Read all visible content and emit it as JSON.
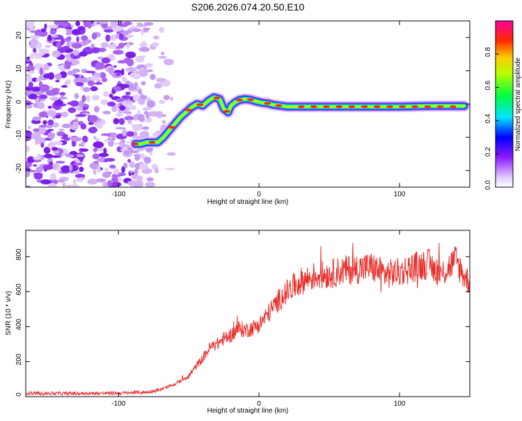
{
  "title": "S206.2026.074.20.50.E10",
  "chart_data": [
    {
      "type": "heatmap",
      "name": "spectrogram",
      "xlabel": "Height of straight line (km)",
      "ylabel": "Frequency (Hz)",
      "xlim": [
        -166,
        150
      ],
      "ylim": [
        -25,
        25
      ],
      "xticks": [
        -100,
        0,
        100
      ],
      "yticks": [
        -20,
        -10,
        0,
        10,
        20
      ],
      "colorbar": {
        "label": "Normalized spectral amplitude",
        "range": [
          0,
          1
        ],
        "ticks": [
          0.0,
          0.2,
          0.4,
          0.6,
          0.8
        ]
      },
      "ridge": {
        "x": [
          -88,
          -84,
          -80,
          -76,
          -72,
          -68,
          -64,
          -60,
          -56,
          -52,
          -48,
          -44,
          -40,
          -36,
          -32,
          -28,
          -25,
          -22,
          -20,
          -17,
          -14,
          -10,
          -6,
          -2,
          2,
          6,
          10,
          15,
          20,
          30,
          40,
          60,
          80,
          100,
          120,
          140,
          146
        ],
        "y": [
          -12,
          -12,
          -11.5,
          -11.5,
          -11.5,
          -10,
          -8,
          -6,
          -4,
          -2.5,
          -1,
          0,
          -0.5,
          1,
          2,
          1.5,
          -1.5,
          -2.5,
          -0.5,
          0.5,
          1.2,
          1.5,
          1.3,
          0.8,
          0.4,
          0.2,
          -0.2,
          -0.5,
          -0.8,
          -0.8,
          -0.8,
          -0.8,
          -0.8,
          -0.8,
          -0.6,
          -0.6,
          -0.6
        ]
      }
    },
    {
      "type": "line",
      "name": "snr",
      "xlabel": "Height of straight line (km)",
      "ylabel": "SNR (10 * v/v)",
      "xlim": [
        -166,
        150
      ],
      "ylim": [
        0,
        950
      ],
      "xticks": [
        -100,
        0,
        100
      ],
      "yticks": [
        0,
        200,
        400,
        600,
        800
      ],
      "color": "#e8302c",
      "trend": {
        "x": [
          -166,
          -140,
          -100,
          -80,
          -70,
          -60,
          -50,
          -45,
          -40,
          -35,
          -30,
          -25,
          -20,
          -15,
          -10,
          -5,
          0,
          5,
          10,
          15,
          20,
          25,
          30,
          40,
          50,
          60,
          70,
          80,
          90,
          100,
          110,
          120,
          130,
          140,
          145,
          150
        ],
        "y": [
          20,
          18,
          20,
          25,
          40,
          70,
          120,
          170,
          220,
          280,
          300,
          330,
          350,
          390,
          380,
          390,
          410,
          460,
          510,
          560,
          600,
          630,
          660,
          690,
          700,
          720,
          730,
          740,
          700,
          710,
          740,
          760,
          700,
          780,
          700,
          650
        ]
      }
    }
  ]
}
